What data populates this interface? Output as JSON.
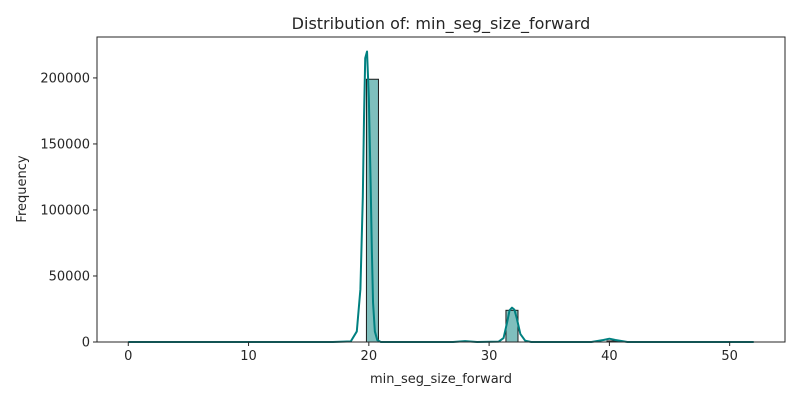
{
  "chart_data": {
    "type": "bar",
    "title": "Distribution of: min_seg_size_forward",
    "xlabel": "min_seg_size_forward",
    "ylabel": "Frequency",
    "xlim": [
      -2.6,
      54.6
    ],
    "ylim": [
      0,
      231000
    ],
    "xticks": [
      0,
      10,
      20,
      30,
      40,
      50
    ],
    "yticks": [
      0,
      50000,
      100000,
      150000,
      200000
    ],
    "grid": false,
    "legend": "none",
    "colors": {
      "bar_fill": "#7fbfbd",
      "bar_edge": "#1a1a1a",
      "kde_line": "#008080",
      "axis": "#262626"
    },
    "histogram": {
      "bins": [
        {
          "x0": 19.8,
          "x1": 20.8,
          "count": 199000
        },
        {
          "x0": 31.4,
          "x1": 32.4,
          "count": 24000
        },
        {
          "x0": 39.8,
          "x1": 40.8,
          "count": 800
        }
      ]
    },
    "kde": {
      "x": [
        0,
        17,
        18.5,
        19.0,
        19.3,
        19.5,
        19.6,
        19.7,
        19.85,
        20.0,
        20.15,
        20.25,
        20.35,
        20.5,
        20.7,
        21.0,
        22,
        27,
        28,
        29,
        30.8,
        31.2,
        31.5,
        31.7,
        31.9,
        32.1,
        32.3,
        32.6,
        33.0,
        33.5,
        38.5,
        39.5,
        40.0,
        40.5,
        41.5,
        52
      ],
      "y": [
        0,
        0,
        500,
        8000,
        40000,
        110000,
        170000,
        215000,
        220000,
        185000,
        120000,
        70000,
        30000,
        8000,
        1500,
        0,
        0,
        0,
        700,
        0,
        300,
        3000,
        15000,
        24000,
        26000,
        24500,
        18000,
        6000,
        1000,
        0,
        0,
        1500,
        2500,
        1500,
        0,
        0
      ]
    }
  }
}
